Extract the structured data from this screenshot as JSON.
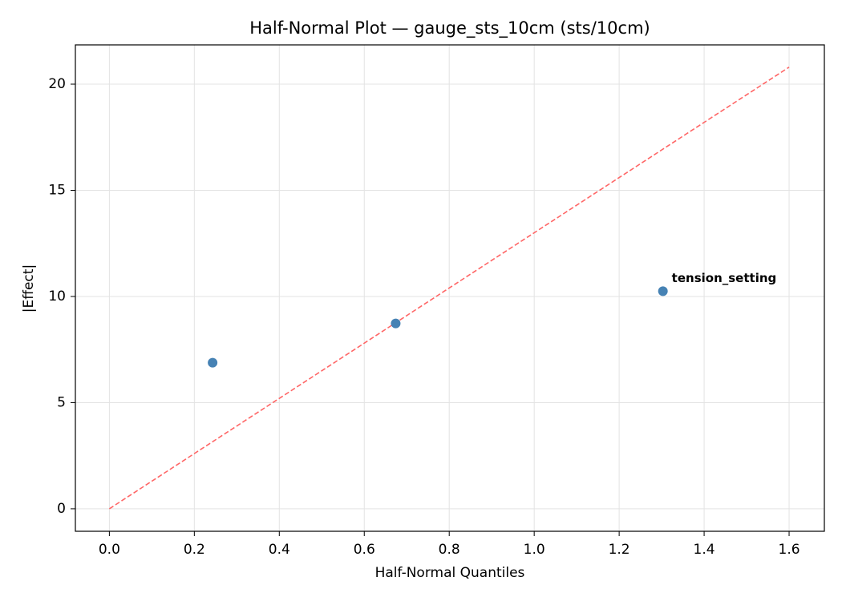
{
  "chart_data": {
    "type": "scatter",
    "title": "Half-Normal Plot — gauge_sts_10cm (sts/10cm)",
    "xlabel": "Half-Normal Quantiles",
    "ylabel": "|Effect|",
    "x": [
      0.243,
      0.674,
      1.303
    ],
    "values": [
      6.88,
      8.73,
      10.25
    ],
    "color": "#4682b4",
    "reference_line": {
      "x": [
        0,
        1.6
      ],
      "values": [
        0,
        20.8
      ],
      "color": "#ff6666",
      "dashed": true
    },
    "annotations": [
      {
        "text": "tension_setting",
        "target": 2,
        "color": "#ff0000"
      }
    ],
    "xlim": [
      -0.08,
      1.683
    ],
    "ylim": [
      -1.06,
      21.85
    ],
    "xticks": [
      {
        "value": 0,
        "label": "0.0"
      },
      0.2,
      0.4,
      0.6,
      0.8,
      {
        "value": 1,
        "label": "1.0"
      },
      1.2,
      1.4,
      1.6
    ],
    "yticks": [
      0,
      5,
      10,
      15,
      20
    ],
    "grid": true
  }
}
